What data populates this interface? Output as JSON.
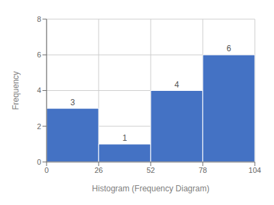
{
  "chart_data": {
    "type": "histogram",
    "bins": [
      0,
      26,
      52,
      78,
      104
    ],
    "values": [
      3,
      1,
      4,
      6
    ],
    "color": "#4472C4",
    "xlabel": "Histogram (Frequency Diagram)",
    "ylabel": "Frequency",
    "xlim": [
      0,
      104
    ],
    "ylim": [
      0,
      8
    ],
    "xticks": [
      0,
      26,
      52,
      78,
      104
    ],
    "yticks": [
      0,
      2,
      4,
      6,
      8
    ],
    "grid": true,
    "data_labels": true
  }
}
